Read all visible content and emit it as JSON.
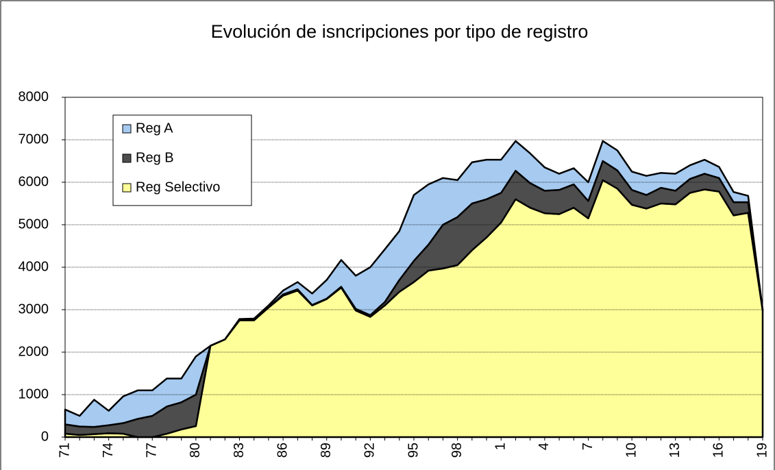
{
  "chart_data": {
    "type": "stacked-area",
    "title": "Evolución de isncripciones por tipo de registro",
    "categories": [
      "71",
      null,
      null,
      "74",
      null,
      null,
      "77",
      null,
      null,
      "80",
      null,
      null,
      "83",
      null,
      null,
      "86",
      null,
      null,
      "89",
      null,
      null,
      "92",
      null,
      null,
      "95",
      null,
      null,
      "98",
      null,
      null,
      "1",
      null,
      null,
      "4",
      null,
      null,
      "7",
      null,
      null,
      "10",
      null,
      null,
      "13",
      null,
      null,
      "16",
      null,
      null,
      "19"
    ],
    "series": [
      {
        "name": "Reg A",
        "color": "#a6caf0",
        "values": [
          350,
          250,
          640,
          340,
          630,
          670,
          600,
          660,
          560,
          900,
          0,
          0,
          10,
          20,
          40,
          90,
          170,
          270,
          440,
          630,
          780,
          1130,
          1240,
          1150,
          1550,
          1420,
          1100,
          870,
          970,
          930,
          780,
          700,
          700,
          550,
          380,
          380,
          440,
          470,
          470,
          430,
          450,
          350,
          400,
          320,
          330,
          260,
          240,
          150,
          0
        ]
      },
      {
        "name": "Reg B",
        "color": "#4d4d4d",
        "values": [
          220,
          200,
          170,
          190,
          250,
          430,
          500,
          640,
          640,
          740,
          0,
          0,
          20,
          20,
          10,
          30,
          30,
          10,
          10,
          20,
          40,
          40,
          80,
          280,
          500,
          610,
          1030,
          1130,
          1100,
          900,
          700,
          670,
          580,
          530,
          570,
          550,
          410,
          450,
          430,
          350,
          320,
          370,
          320,
          330,
          370,
          320,
          310,
          250,
          20
        ]
      },
      {
        "name": "Reg Selectivo",
        "color": "#ffff99",
        "values": [
          80,
          50,
          70,
          90,
          80,
          0,
          0,
          80,
          180,
          260,
          2150,
          2300,
          2750,
          2750,
          3050,
          3330,
          3450,
          3100,
          3250,
          3520,
          2980,
          2830,
          3100,
          3420,
          3650,
          3920,
          3970,
          4050,
          4400,
          4700,
          5050,
          5600,
          5400,
          5270,
          5250,
          5400,
          5150,
          6050,
          5850,
          5470,
          5380,
          5500,
          5480,
          5750,
          5830,
          5780,
          5220,
          5280,
          2980
        ]
      }
    ],
    "ylim": [
      0,
      8000
    ],
    "yticks": [
      0,
      1000,
      2000,
      3000,
      4000,
      5000,
      6000,
      7000,
      8000
    ],
    "grid": true,
    "legend": "upper-left"
  }
}
